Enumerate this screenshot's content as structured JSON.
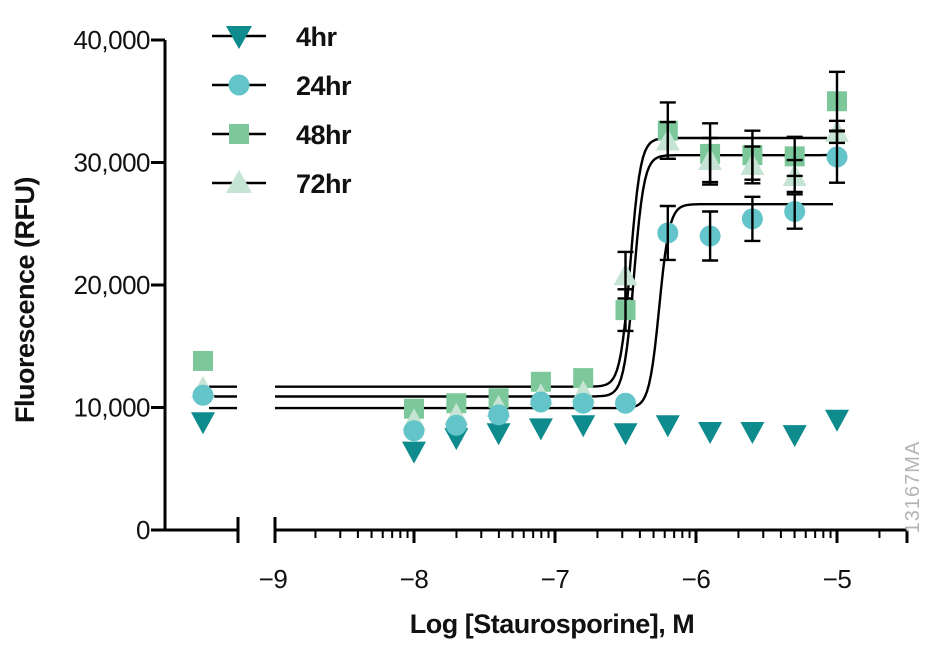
{
  "chart_data": {
    "type": "scatter",
    "title": "",
    "xlabel": "Log [Staurosporine], M",
    "ylabel": "Fluorescence (RFU)",
    "watermark": "13167MA",
    "axis_color": "#000000",
    "watermark_color": "#b4b4b4",
    "x_axis": {
      "scale": "log10 molar concentration",
      "ticks": [
        -9,
        -8,
        -7,
        -6,
        -5
      ],
      "tick_labels": [
        "−9",
        "−8",
        "−7",
        "−6",
        "−5"
      ],
      "has_break_before": -9,
      "minor_ticks": "log decade minors (2-9) plus one beyond -5",
      "grid": false
    },
    "y_axis": {
      "ticks": [
        0,
        10000,
        20000,
        30000,
        40000
      ],
      "tick_labels": [
        "0",
        "10,000",
        "20,000",
        "30,000",
        "40,000"
      ],
      "range": [
        0,
        40000
      ],
      "grid": false
    },
    "legend_position": "top-left inside plot",
    "control_note": "leftmost cluster plotted before axis break (no-drug control)",
    "x_values": [
      -8.0,
      -7.7,
      -7.4,
      -7.1,
      -6.8,
      -6.5,
      -6.2,
      -5.9,
      -5.6,
      -5.3,
      -5.0
    ],
    "series": [
      {
        "name": "4hr",
        "marker": "triangle-down",
        "color": "#0d8b8d",
        "control_value": 8800,
        "values": [
          6400,
          7500,
          7900,
          8300,
          8550,
          7900,
          8550,
          8000,
          8000,
          7750,
          9000
        ],
        "errors": [
          null,
          null,
          null,
          null,
          null,
          null,
          null,
          null,
          null,
          null,
          null
        ],
        "fit": null
      },
      {
        "name": "24hr",
        "marker": "circle",
        "color": "#63c5ca",
        "control_value": 11000,
        "values": [
          8100,
          8550,
          9400,
          10450,
          10350,
          10350,
          24250,
          24000,
          25400,
          26000,
          30450
        ],
        "errors": [
          null,
          null,
          null,
          null,
          null,
          null,
          2200,
          2000,
          1800,
          1400,
          2100
        ],
        "fit": {
          "bottom": 9950,
          "top": 26600,
          "log_ec50": -6.26,
          "hill": 12,
          "log_end": -5.02
        }
      },
      {
        "name": "48hr",
        "marker": "square",
        "color": "#7cc89a",
        "control_value": 13800,
        "values": [
          9900,
          10350,
          10750,
          12100,
          12400,
          17950,
          32600,
          30700,
          30600,
          30500,
          35000
        ],
        "errors": [
          null,
          null,
          null,
          null,
          null,
          1700,
          2300,
          2500,
          2000,
          1600,
          2400
        ],
        "fit": {
          "bottom": 11700,
          "top": 32000,
          "log_ec50": -6.465,
          "hill": 12,
          "log_end": -5.07
        }
      },
      {
        "name": "72hr",
        "marker": "triangle-up",
        "color": "#c5e4d3",
        "control_value": 11600,
        "values": [
          8950,
          9400,
          10050,
          11000,
          11250,
          20800,
          31800,
          30200,
          29800,
          28900,
          32500
        ],
        "errors": [
          null,
          null,
          null,
          null,
          null,
          1900,
          1500,
          1800,
          1500,
          1300,
          900
        ],
        "fit": {
          "bottom": 10900,
          "top": 30600,
          "log_ec50": -6.44,
          "hill": 12,
          "log_end": -5.0
        }
      }
    ]
  }
}
